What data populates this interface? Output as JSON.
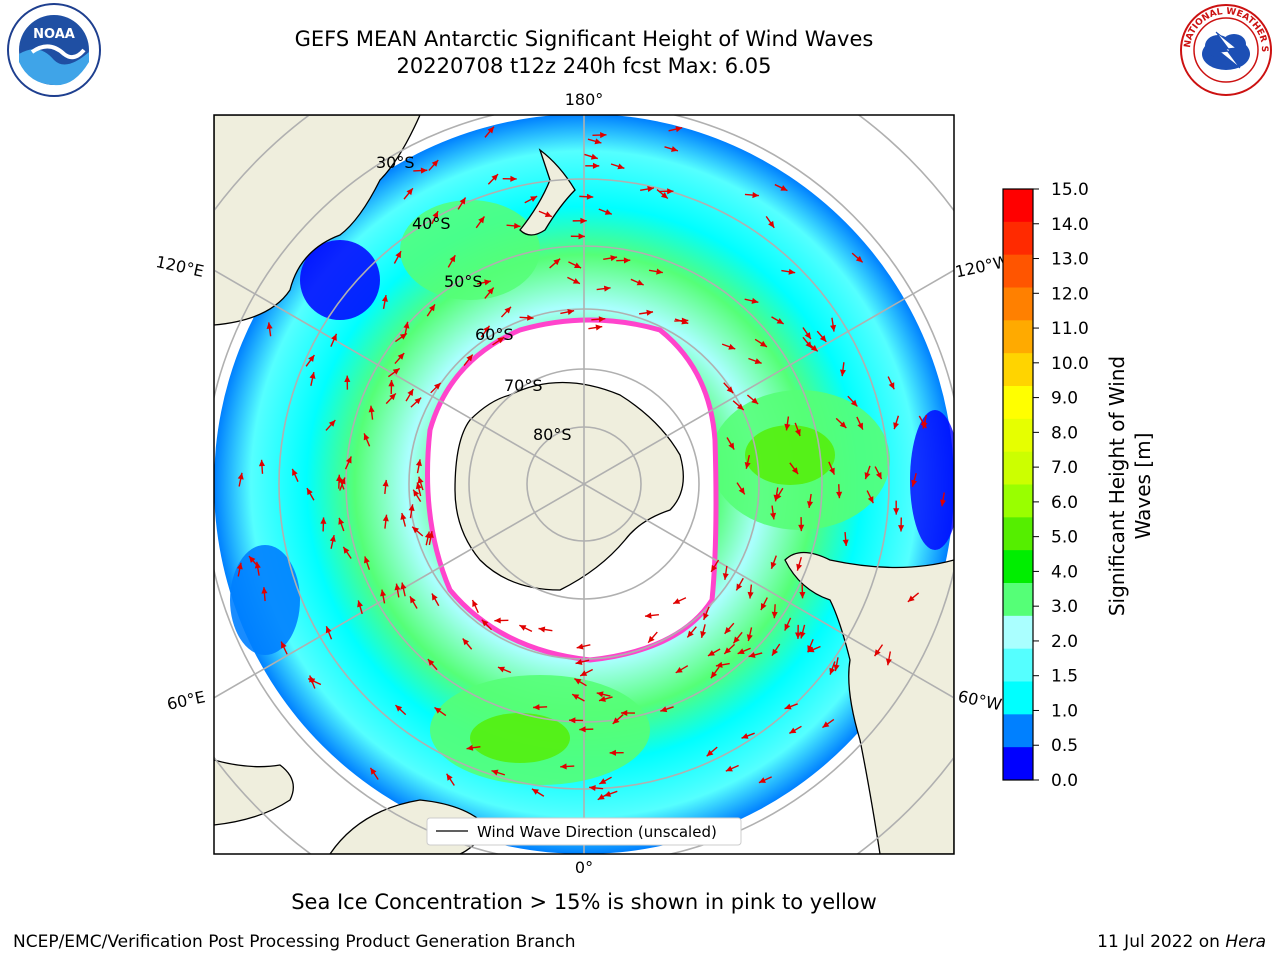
{
  "header": {
    "title_line1": "GEFS MEAN Antarctic Significant Height of Wind Waves",
    "title_line2": "20220708 t12z 240h fcst   Max: 6.05"
  },
  "logos": {
    "left_text": "NOAA",
    "right_text": "NATIONAL WEATHER SERVICE"
  },
  "map": {
    "projection": "south-polar-stereographic",
    "longitude_labels": [
      "180°",
      "120°E",
      "120°W",
      "60°E",
      "60°W",
      "0°"
    ],
    "latitude_labels": [
      "30°S",
      "40°S",
      "50°S",
      "60°S",
      "70°S",
      "80°S"
    ],
    "legend_label": "Wind Wave Direction (unscaled)"
  },
  "colorbar": {
    "label_line1": "Significant Height of Wind",
    "label_line2": "Waves [m]",
    "ticks": [
      "15.0",
      "14.0",
      "13.0",
      "12.0",
      "11.0",
      "10.0",
      "9.0",
      "8.0",
      "7.0",
      "6.0",
      "5.0",
      "4.0",
      "3.0",
      "2.0",
      "1.5",
      "1.0",
      "0.5",
      "0.0"
    ],
    "colors": [
      "#ff0000",
      "#ff2a00",
      "#ff5500",
      "#ff8000",
      "#ffaa00",
      "#ffd400",
      "#ffff00",
      "#e6ff00",
      "#ccff00",
      "#99ff00",
      "#55ee00",
      "#00ee00",
      "#55ff77",
      "#aaffff",
      "#55ffff",
      "#00ffff",
      "#0080ff",
      "#0000ff"
    ]
  },
  "captions": {
    "sea_ice": "Sea Ice Concentration > 15% is shown in pink to yellow",
    "branch": "NCEP/EMC/Verification Post Processing Product Generation Branch",
    "date": "11 Jul 2022 on",
    "machine": "Hera"
  }
}
